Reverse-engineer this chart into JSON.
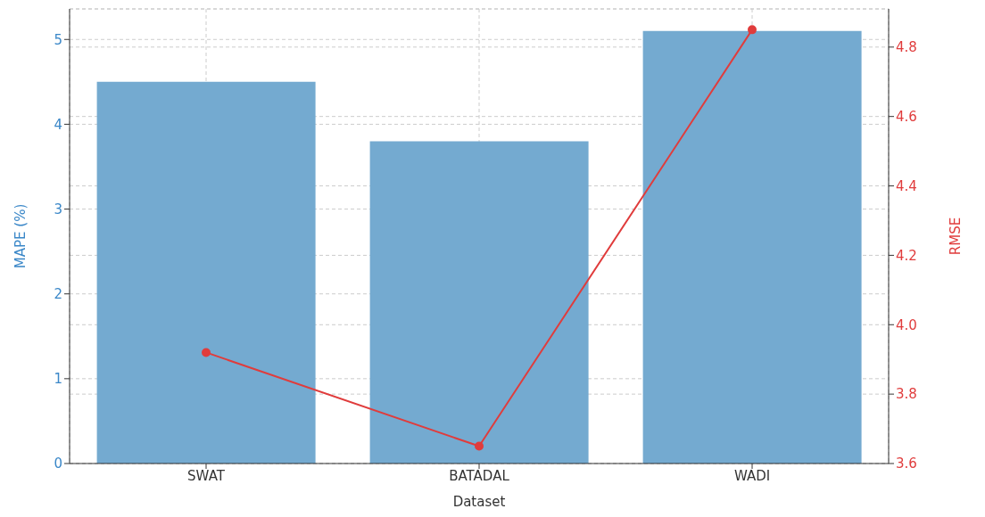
{
  "chart_data": {
    "type": "bar",
    "xlabel": "Dataset",
    "ylabel": "MAPE (%)",
    "y2label": "RMSE",
    "categories": [
      "SWAT",
      "BATADAL",
      "WADI"
    ],
    "series": [
      {
        "color": "#74aad0",
        "values": [
          4.5,
          3.8,
          5.1
        ]
      },
      {
        "type": "line",
        "axis": "y2",
        "color": "#e03c3c",
        "values": [
          3.92,
          3.65,
          4.85
        ],
        "marker": "circle"
      }
    ],
    "ylim": [
      0,
      5.36
    ],
    "yticks": [
      0,
      1,
      2,
      3,
      4,
      5
    ],
    "y2lim": [
      3.6,
      4.91
    ],
    "y2ticks": [
      3.6,
      3.8,
      {
        "value": 4,
        "label": "4.0"
      },
      4.2,
      4.4,
      4.6,
      4.8
    ],
    "grid": true
  }
}
